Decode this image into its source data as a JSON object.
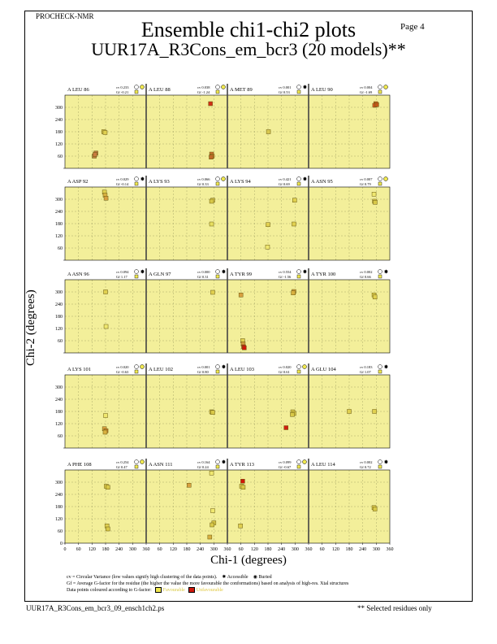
{
  "header": {
    "program": "PROCHECK-NMR",
    "page": "Page  4",
    "title": "Ensemble chi1-chi2 plots",
    "subtitle": "UUR17A_R3Cons_em_bcr3 (20 models)**"
  },
  "axes": {
    "ylabel": "Chi-2 (degrees)",
    "xlabel": "Chi-1 (degrees)",
    "x_ticks": [
      "0",
      "60",
      "120",
      "180",
      "240",
      "300",
      "360"
    ],
    "y_ticks": [
      "300",
      "240",
      "180",
      "120",
      "60",
      "0"
    ]
  },
  "legend": {
    "cv_text": "cv = Circular Variance (low values signify high clustering of the data points).",
    "accessible": "Accessible",
    "buried": "Buried",
    "gf_text": "Gf = Average G-factor for the residue (the higher the value the more favourable the conformations) based on analysis of high-res. Xtal structures",
    "colour_text": "Data points coloured according to G-factor:",
    "favourable": "Favourable",
    "unfavourable": "Unfavourable"
  },
  "footer": {
    "filename": "UUR17A_R3Cons_em_bcr3_09_ensch1ch2.ps",
    "note": "** Selected residues only"
  },
  "chart_data": {
    "type": "scatter",
    "xlim": [
      0,
      360
    ],
    "ylim": [
      0,
      360
    ],
    "grid": true,
    "colors": {
      "background": "#f3ef9a",
      "favourable": "#f0e850",
      "unfavourable": "#d0180c",
      "intermediate": "#d07a30"
    },
    "panels": [
      {
        "label": "A LEU 86",
        "cv": "cv 0.233",
        "gf": "Gf -0.21",
        "access": "buried",
        "points": [
          [
            172,
            180,
            "#d8c850"
          ],
          [
            178,
            176,
            "#e0d050"
          ],
          [
            130,
            60,
            "#c08040"
          ],
          [
            137,
            75,
            "#b87840"
          ],
          [
            133,
            68,
            "#c87a40"
          ]
        ]
      },
      {
        "label": "A LEU 88",
        "cv": "cv 0.038",
        "gf": "Gf -1.24",
        "access": "buried",
        "points": [
          [
            285,
            318,
            "#d03018"
          ],
          [
            290,
            70,
            "#c8702c"
          ],
          [
            293,
            60,
            "#d0802c"
          ],
          [
            288,
            55,
            "#c06a28"
          ]
        ]
      },
      {
        "label": "A MET 89",
        "cv": "cv 0.001",
        "gf": "Gf 0.53",
        "access": "accessible",
        "points": [
          [
            182,
            180,
            "#d8c850"
          ]
        ]
      },
      {
        "label": "A LEU 90",
        "cv": "cv 0.004",
        "gf": "Gf -1.69",
        "access": "buried",
        "points": [
          [
            298,
            318,
            "#d06020"
          ],
          [
            293,
            310,
            "#d05820"
          ],
          [
            302,
            313,
            "#c05818"
          ]
        ]
      },
      {
        "label": "A ASP 92",
        "cv": "cv 0.029",
        "gf": "Gf -0.14",
        "access": "accessible",
        "points": [
          [
            175,
            335,
            "#e0d050"
          ],
          [
            178,
            320,
            "#d8b040"
          ],
          [
            182,
            305,
            "#d8a040"
          ]
        ]
      },
      {
        "label": "A LYS 93",
        "cv": "cv 0.066",
        "gf": "Gf 0.33",
        "access": "buried",
        "points": [
          [
            295,
            295,
            "#e0d050"
          ],
          [
            290,
            290,
            "#d8c848"
          ],
          [
            290,
            178,
            "#e8e060"
          ]
        ]
      },
      {
        "label": "A LYS 94",
        "cv": "cv 0.421",
        "gf": "Gf 0.69",
        "access": "accessible",
        "points": [
          [
            298,
            295,
            "#e0d050"
          ],
          [
            180,
            175,
            "#e0d050"
          ],
          [
            295,
            178,
            "#e0d050"
          ],
          [
            178,
            65,
            "#f0e870"
          ]
        ]
      },
      {
        "label": "A ASN 95",
        "cv": "cv 0.007",
        "gf": "Gf 0.79",
        "access": "buried",
        "points": [
          [
            290,
            325,
            "#f0e870"
          ],
          [
            292,
            290,
            "#e0d050"
          ],
          [
            295,
            285,
            "#d8c848"
          ]
        ]
      },
      {
        "label": "A ASN 96",
        "cv": "cv 0.094",
        "gf": "Gf 1.17",
        "access": "accessible",
        "points": [
          [
            180,
            300,
            "#e0d050"
          ],
          [
            182,
            130,
            "#f0e870"
          ]
        ]
      },
      {
        "label": "A GLN 97",
        "cv": "cv 0.000",
        "gf": "Gf 0.31",
        "access": "accessible",
        "points": [
          [
            295,
            298,
            "#e0d050"
          ]
        ]
      },
      {
        "label": "A TYR 99",
        "cv": "cv 0.554",
        "gf": "Gf -1.56",
        "access": "accessible",
        "points": [
          [
            60,
            285,
            "#d8a040"
          ],
          [
            295,
            302,
            "#d8a040"
          ],
          [
            292,
            295,
            "#d8b040"
          ],
          [
            68,
            60,
            "#e0d050"
          ],
          [
            70,
            45,
            "#d0a040"
          ],
          [
            72,
            30,
            "#c02010"
          ],
          [
            75,
            25,
            "#d01808"
          ]
        ]
      },
      {
        "label": "A TYR 100",
        "cv": "cv 0.002",
        "gf": "Gf 0.66",
        "access": "accessible",
        "points": [
          [
            290,
            285,
            "#e0d050"
          ],
          [
            294,
            275,
            "#e0d050"
          ]
        ]
      },
      {
        "label": "A LYS 101",
        "cv": "cv 0.020",
        "gf": "Gf -0.63",
        "access": "buried",
        "points": [
          [
            180,
            160,
            "#f0e870"
          ],
          [
            175,
            95,
            "#d8a040"
          ],
          [
            182,
            85,
            "#c88030"
          ],
          [
            178,
            78,
            "#d8b040"
          ]
        ]
      },
      {
        "label": "A LEU 102",
        "cv": "cv 0.001",
        "gf": "Gf 0.80",
        "access": "accessible",
        "points": [
          [
            290,
            178,
            "#e0d050"
          ],
          [
            295,
            175,
            "#d8c848"
          ]
        ]
      },
      {
        "label": "A LEU 103",
        "cv": "cv 0.020",
        "gf": "Gf 0.61",
        "access": "buried",
        "points": [
          [
            290,
            178,
            "#e0d050"
          ],
          [
            295,
            170,
            "#d8c848"
          ],
          [
            288,
            165,
            "#d8c848"
          ],
          [
            260,
            100,
            "#d02010"
          ]
        ]
      },
      {
        "label": "A GLU 104",
        "cv": "cv 0.183",
        "gf": "Gf 1.07",
        "access": "accessible",
        "points": [
          [
            180,
            180,
            "#e0d050"
          ],
          [
            292,
            180,
            "#e0d050"
          ]
        ]
      },
      {
        "label": "A PHE 108",
        "cv": "cv 0.254",
        "gf": "Gf 0.47",
        "access": "buried",
        "points": [
          [
            183,
            280,
            "#e0d050"
          ],
          [
            190,
            275,
            "#d8c848"
          ],
          [
            186,
            85,
            "#e0d050"
          ],
          [
            190,
            70,
            "#d8c848"
          ]
        ]
      },
      {
        "label": "A ASN 111",
        "cv": "cv 0.164",
        "gf": "Gf 0.24",
        "access": "accessible",
        "points": [
          [
            290,
            345,
            "#f0e870"
          ],
          [
            190,
            285,
            "#d8a040"
          ],
          [
            295,
            160,
            "#f0e870"
          ],
          [
            300,
            100,
            "#d8c848"
          ],
          [
            292,
            90,
            "#d8c848"
          ],
          [
            282,
            30,
            "#d8b040"
          ]
        ]
      },
      {
        "label": "A TYR 113",
        "cv": "cv 0.099",
        "gf": "Gf -0.67",
        "access": "buried",
        "points": [
          [
            68,
            305,
            "#d01808"
          ],
          [
            63,
            280,
            "#e0d050"
          ],
          [
            70,
            275,
            "#d8c848"
          ],
          [
            58,
            85,
            "#e0d050"
          ]
        ]
      },
      {
        "label": "A LEU 114",
        "cv": "cv 0.002",
        "gf": "Gf 0.72",
        "access": "accessible",
        "points": [
          [
            290,
            175,
            "#e0d050"
          ],
          [
            294,
            168,
            "#d8c848"
          ]
        ]
      }
    ]
  }
}
